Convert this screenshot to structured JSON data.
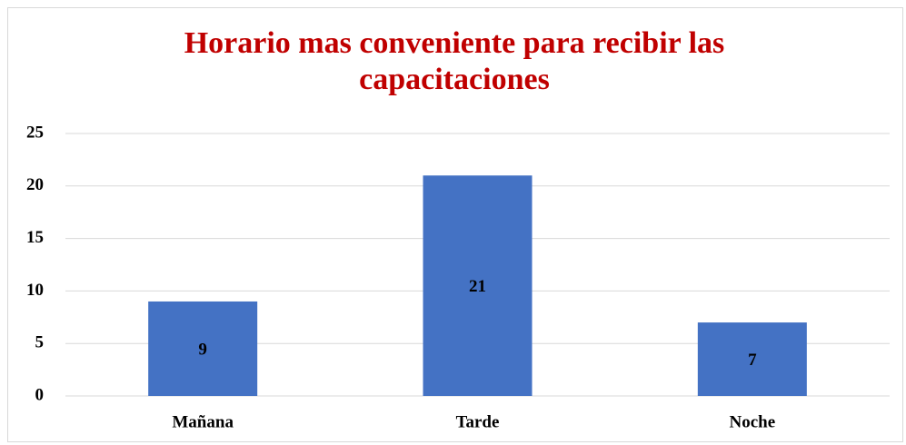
{
  "chart_data": {
    "type": "bar",
    "title": "Horario mas conveniente para recibir las capacitaciones",
    "categories": [
      "Mañana",
      "Tarde",
      "Noche"
    ],
    "values": [
      9,
      21,
      7
    ],
    "color": "#4472c4",
    "ylim": [
      0,
      25
    ],
    "yticks": [
      0,
      5,
      10,
      15,
      20,
      25
    ],
    "grid": true
  }
}
